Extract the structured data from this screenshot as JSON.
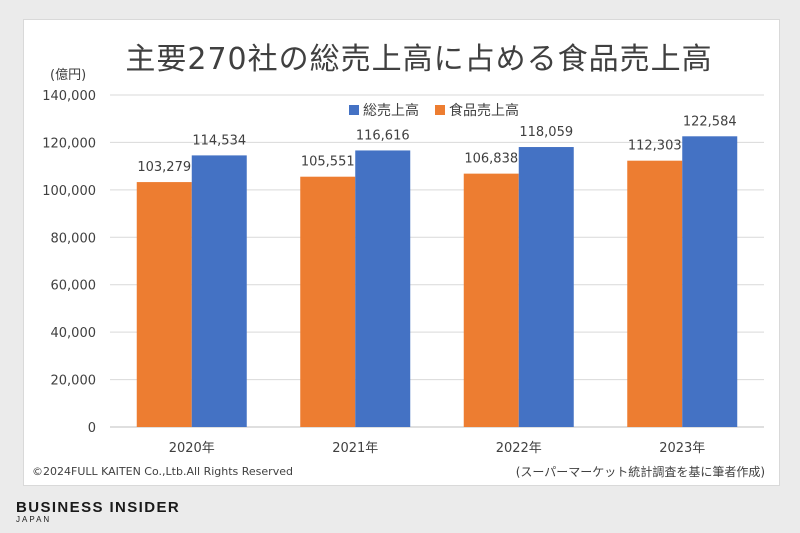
{
  "chart_data": {
    "type": "bar",
    "title": "主要270社の総売上高に占める食品売上高",
    "ylabel": "(億円)",
    "categories": [
      "2020年",
      "2021年",
      "2022年",
      "2023年"
    ],
    "series": [
      {
        "name": "食品売上高",
        "color": "#ed7d31",
        "values": [
          103279,
          105551,
          106838,
          112303
        ],
        "labels": [
          "103,279",
          "105,551",
          "106,838",
          "112,303"
        ]
      },
      {
        "name": "総売上高",
        "color": "#4472c4",
        "values": [
          114534,
          116616,
          118059,
          122584
        ],
        "labels": [
          "114,534",
          "116,616",
          "118,059",
          "122,584"
        ]
      }
    ],
    "legend_order": [
      "総売上高",
      "食品売上高"
    ],
    "ylim": [
      0,
      140000
    ],
    "yticks": [
      0,
      20000,
      40000,
      60000,
      80000,
      100000,
      120000,
      140000
    ],
    "ytick_labels": [
      "0",
      "20,000",
      "40,000",
      "60,000",
      "80,000",
      "100,000",
      "120,000",
      "140,000"
    ],
    "grid": true,
    "legend_position": "top-center"
  },
  "footer": {
    "copyright": "©2024FULL KAITEN Co.,Ltb.All Rights Reserved",
    "source": "(スーパーマーケット統計調査を基に筆者作成)"
  },
  "brand": {
    "name": "BUSINESS INSIDER",
    "region": "JAPAN"
  }
}
